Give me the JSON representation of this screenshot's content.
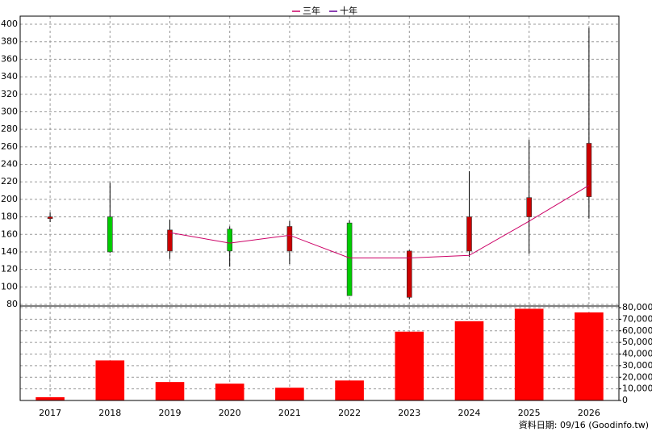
{
  "chart_data": {
    "type": "candlestick",
    "categories": [
      "2017",
      "2018",
      "2019",
      "2020",
      "2021",
      "2022",
      "2023",
      "2024",
      "2025",
      "2026"
    ],
    "ohlc": {
      "open": [
        178,
        180,
        141,
        166,
        141,
        173,
        88,
        141,
        180,
        203
      ],
      "high": [
        185,
        219,
        177,
        169,
        175,
        176,
        142,
        232,
        268,
        396
      ],
      "low": [
        174,
        139,
        132,
        123,
        126,
        90,
        86,
        134,
        138,
        178
      ],
      "close": [
        180,
        140,
        165,
        141,
        169,
        90,
        141,
        180,
        202,
        264
      ],
      "up_color": "#cc0000",
      "down_color": "#00cc00"
    },
    "series": [
      {
        "name": "三年",
        "color": "#cc0066",
        "values": [
          null,
          null,
          162,
          150,
          159,
          133,
          133,
          136,
          175,
          216
        ]
      },
      {
        "name": "十年",
        "color": "#660099",
        "values": [
          null,
          null,
          null,
          null,
          null,
          null,
          null,
          null,
          null,
          null
        ]
      }
    ],
    "legend_position": "top",
    "grid": true,
    "ylim": [
      80,
      400
    ],
    "yticks": [
      80,
      100,
      120,
      140,
      160,
      180,
      200,
      220,
      240,
      260,
      280,
      300,
      320,
      340,
      360,
      380,
      400
    ],
    "volume": {
      "color": "#ff0000",
      "values": [
        2800,
        34500,
        15900,
        14500,
        11000,
        17200,
        59300,
        68300,
        79000,
        75900
      ],
      "ylim": [
        0,
        80000
      ],
      "yticks": [
        0,
        {
          "value": 10000,
          "label": "10,000"
        },
        {
          "value": 20000,
          "label": "20,000"
        },
        {
          "value": 30000,
          "label": "30,000"
        },
        {
          "value": 40000,
          "label": "40,000"
        },
        {
          "value": 50000,
          "label": "50,000"
        },
        {
          "value": 60000,
          "label": "60,000"
        },
        {
          "value": 70000,
          "label": "70,000"
        },
        {
          "value": 80000,
          "label": "80,000"
        }
      ]
    }
  },
  "footer": "資料日期: 09/16  (Goodinfo.tw)"
}
